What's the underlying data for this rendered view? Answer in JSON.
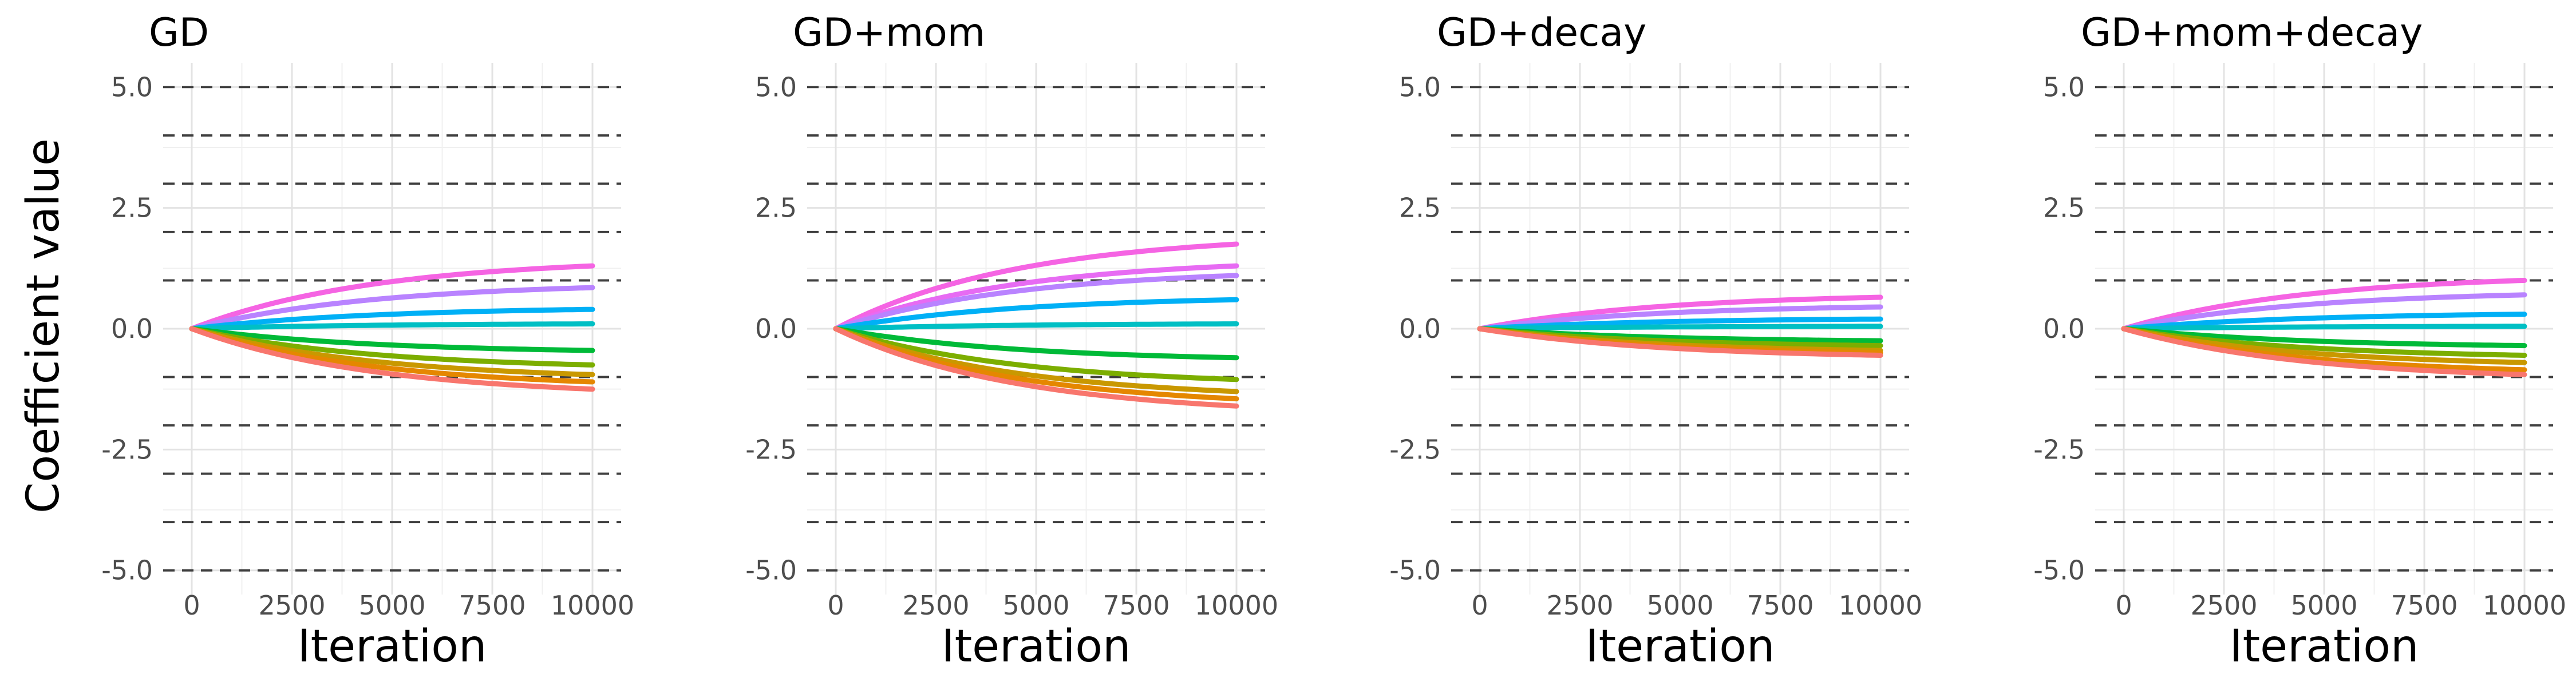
{
  "figure": {
    "ylabel": "Coefficient value",
    "xlabel": "Iteration"
  },
  "chart_data": [
    {
      "type": "line",
      "title": "GD",
      "xlabel": "Iteration",
      "ylabel": "Coefficient value",
      "xlim": [
        0,
        10000
      ],
      "ylim": [
        -5.5,
        5.5
      ],
      "x_ticks": [
        0,
        2500,
        5000,
        7500,
        10000
      ],
      "y_ticks": [
        "5.0",
        "2.5",
        "0.0",
        "-2.5",
        "-5.0"
      ],
      "grid": true,
      "reference_lines_dashed": [
        -5,
        -4,
        -3,
        -2,
        -1,
        1,
        2,
        3,
        4,
        5
      ],
      "x": [
        0,
        10000
      ],
      "series": [
        {
          "color": "#F564E3",
          "final_value": 1.3
        },
        {
          "color": "#B983FF",
          "final_value": 0.85
        },
        {
          "color": "#00B0F6",
          "final_value": 0.4
        },
        {
          "color": "#00BFC4",
          "final_value": 0.1
        },
        {
          "color": "#00BA38",
          "final_value": -0.45
        },
        {
          "color": "#7CAE00",
          "final_value": -0.75
        },
        {
          "color": "#C99800",
          "final_value": -0.95
        },
        {
          "color": "#E58700",
          "final_value": -1.1
        },
        {
          "color": "#F8766D",
          "final_value": -1.25
        }
      ]
    },
    {
      "type": "line",
      "title": "GD+mom",
      "xlabel": "Iteration",
      "ylabel": "Coefficient value",
      "xlim": [
        0,
        10000
      ],
      "ylim": [
        -5.5,
        5.5
      ],
      "x_ticks": [
        0,
        2500,
        5000,
        7500,
        10000
      ],
      "y_ticks": [
        "5.0",
        "2.5",
        "0.0",
        "-2.5",
        "-5.0"
      ],
      "grid": true,
      "reference_lines_dashed": [
        -5,
        -4,
        -3,
        -2,
        -1,
        1,
        2,
        3,
        4,
        5
      ],
      "x": [
        0,
        10000
      ],
      "series": [
        {
          "color": "#F564E3",
          "final_value": 1.75
        },
        {
          "color": "#E76BF3",
          "final_value": 1.3
        },
        {
          "color": "#B983FF",
          "final_value": 1.1
        },
        {
          "color": "#00B0F6",
          "final_value": 0.6
        },
        {
          "color": "#00BFC4",
          "final_value": 0.1
        },
        {
          "color": "#00BA38",
          "final_value": -0.6
        },
        {
          "color": "#7CAE00",
          "final_value": -1.05
        },
        {
          "color": "#C99800",
          "final_value": -1.3
        },
        {
          "color": "#E58700",
          "final_value": -1.45
        },
        {
          "color": "#F8766D",
          "final_value": -1.6
        }
      ]
    },
    {
      "type": "line",
      "title": "GD+decay",
      "xlabel": "Iteration",
      "ylabel": "Coefficient value",
      "xlim": [
        0,
        10000
      ],
      "ylim": [
        -5.5,
        5.5
      ],
      "x_ticks": [
        0,
        2500,
        5000,
        7500,
        10000
      ],
      "y_ticks": [
        "5.0",
        "2.5",
        "0.0",
        "-2.5",
        "-5.0"
      ],
      "grid": true,
      "reference_lines_dashed": [
        -5,
        -4,
        -3,
        -2,
        -1,
        1,
        2,
        3,
        4,
        5
      ],
      "x": [
        0,
        10000
      ],
      "series": [
        {
          "color": "#F564E3",
          "final_value": 0.65
        },
        {
          "color": "#B983FF",
          "final_value": 0.45
        },
        {
          "color": "#00B0F6",
          "final_value": 0.2
        },
        {
          "color": "#00BFC4",
          "final_value": 0.05
        },
        {
          "color": "#00BA38",
          "final_value": -0.25
        },
        {
          "color": "#7CAE00",
          "final_value": -0.35
        },
        {
          "color": "#C99800",
          "final_value": -0.45
        },
        {
          "color": "#E58700",
          "final_value": -0.5
        },
        {
          "color": "#F8766D",
          "final_value": -0.55
        }
      ]
    },
    {
      "type": "line",
      "title": "GD+mom+decay",
      "xlabel": "Iteration",
      "ylabel": "Coefficient value",
      "xlim": [
        0,
        10000
      ],
      "ylim": [
        -5.5,
        5.5
      ],
      "x_ticks": [
        0,
        2500,
        5000,
        7500,
        10000
      ],
      "y_ticks": [
        "5.0",
        "2.5",
        "0.0",
        "-2.5",
        "-5.0"
      ],
      "grid": true,
      "reference_lines_dashed": [
        -5,
        -4,
        -3,
        -2,
        -1,
        1,
        2,
        3,
        4,
        5
      ],
      "x": [
        0,
        10000
      ],
      "series": [
        {
          "color": "#F564E3",
          "final_value": 1.0
        },
        {
          "color": "#B983FF",
          "final_value": 0.7
        },
        {
          "color": "#00B0F6",
          "final_value": 0.3
        },
        {
          "color": "#00BFC4",
          "final_value": 0.05
        },
        {
          "color": "#00BA38",
          "final_value": -0.35
        },
        {
          "color": "#7CAE00",
          "final_value": -0.55
        },
        {
          "color": "#C99800",
          "final_value": -0.7
        },
        {
          "color": "#E58700",
          "final_value": -0.85
        },
        {
          "color": "#F8766D",
          "final_value": -0.95
        }
      ]
    }
  ]
}
